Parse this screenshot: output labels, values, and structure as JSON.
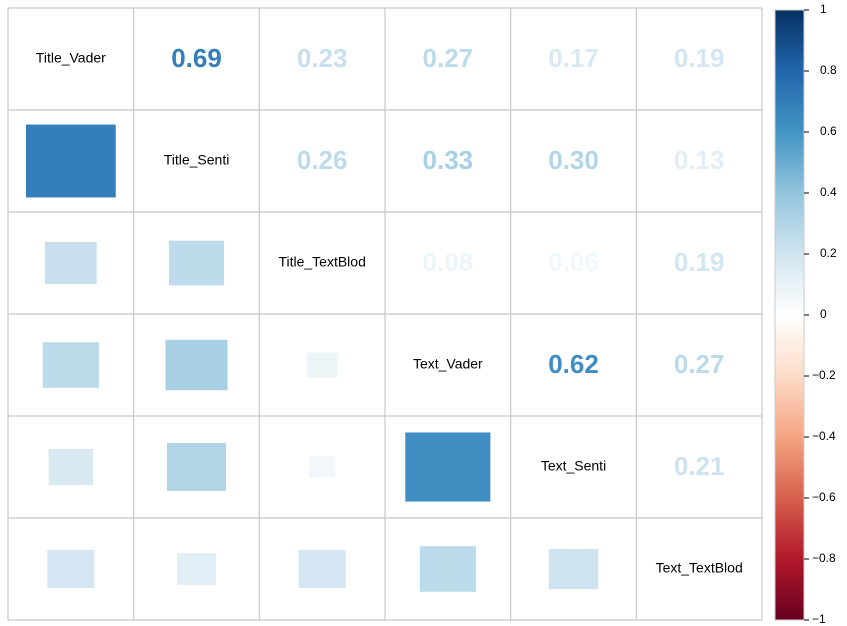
{
  "chart_data": {
    "type": "corrplot",
    "variables": [
      "Title_Vader",
      "Title_Senti",
      "Title_TextBlod",
      "Text_Vader",
      "Text_Senti",
      "Text_TextBlod"
    ],
    "values": [
      [
        0.69,
        0.23,
        0.27,
        0.17,
        0.19
      ],
      [
        0.26,
        0.33,
        0.3,
        0.13
      ],
      [
        0.08,
        0.06,
        0.19
      ],
      [
        0.62,
        0.27
      ],
      [
        0.21
      ]
    ],
    "value_labels": [
      [
        "0.69",
        "0.23",
        "0.27",
        "0.17",
        "0.19"
      ],
      [
        "0.26",
        "0.33",
        "0.30",
        "0.13"
      ],
      [
        "0.08",
        "0.06",
        "0.19"
      ],
      [
        "0.62",
        "0.27"
      ],
      [
        "0.21"
      ]
    ],
    "colormap": [
      "#67001F",
      "#B2182B",
      "#D6604D",
      "#F4A582",
      "#FDDBC7",
      "#FFFFFF",
      "#D1E5F0",
      "#92C5DE",
      "#4393C3",
      "#2166AC",
      "#053061"
    ],
    "clim": [
      -1,
      1
    ],
    "cticks": [
      1,
      0.8,
      0.6,
      0.4,
      0.2,
      0,
      {
        "value": -0.2,
        "label": "−0.2"
      },
      {
        "value": -0.4,
        "label": "−0.4"
      },
      {
        "value": -0.6,
        "label": "−0.6"
      },
      {
        "value": -0.8,
        "label": "−0.8"
      },
      {
        "value": -1,
        "label": "−1"
      }
    ]
  }
}
